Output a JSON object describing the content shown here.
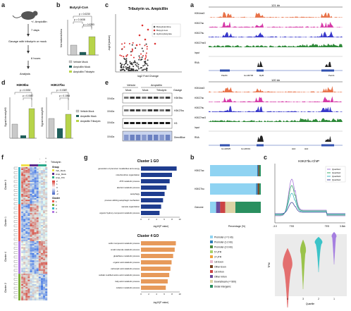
{
  "labels": {
    "a": "a",
    "b": "b",
    "c": "c",
    "d": "d",
    "e": "e",
    "f": "f",
    "g": "g",
    "h": "b",
    "i": "c",
    "a2": "a"
  },
  "panel_a": {
    "steps": [
      "+/- Ampicillin",
      "7 days",
      "Gavage with tributyrin or mock",
      "6 hours",
      "Analysis"
    ]
  },
  "panel_b": {
    "title": "Butyryl-CoA",
    "ylabel": "Normalized Area",
    "pvals": [
      "p = 0.0230",
      "p = 0.1638",
      "p = 0.0283"
    ],
    "legend": [
      "Vehicle Mock",
      "Ampicillin Mock",
      "Ampicillin Tributyrin"
    ],
    "colors": [
      "#c9c9c9",
      "#1f5f5b",
      "#b7d44a"
    ]
  },
  "panel_c": {
    "title": "Tributyrin vs. Ampicillin",
    "xlabel": "log2 Fold Change",
    "ylabel": "-log10(pvalue)",
    "legend": [
      "Butyrylcarnitine",
      "Butyryl-CoA",
      "Hydroxybutyrate"
    ]
  },
  "panel_d": {
    "titles": [
      "H3K9bu",
      "H3K27bu"
    ],
    "ylabel": "Signal Intensity/H3",
    "left_pvals": [
      "p = 0.0033",
      "p = 0.0087"
    ],
    "right_pvals": [
      "p = 0.0387",
      "p = 0.1064"
    ],
    "legend": [
      "Vehicle Mock",
      "Ampicillin Mock",
      "Ampicillin Tributyrin"
    ]
  },
  "panel_e": {
    "headers": [
      "Vehicle",
      "Ampicillin",
      "Mock",
      "Mock",
      "Tributyrin",
      "Gavage"
    ],
    "kda": [
      "15 kDa",
      "15 kDa",
      "15 kDa",
      "15 kDa",
      "15 kDa"
    ],
    "bands": [
      "H3K9bu",
      "H3K27bu",
      "H3",
      "DirectBlue"
    ]
  },
  "panel_genome1": {
    "scale": "121 kb",
    "tracks": [
      "H3K4me3",
      "H3K27ac",
      "H3K27bu",
      "H3K27me3",
      "Input",
      "RNA"
    ],
    "genes": [
      "Pla2f4",
      "Gm36705",
      "Rpl5",
      "Pacrt1"
    ]
  },
  "panel_genome2": {
    "scale": "120 kb",
    "tracks": [
      "H3K4me3",
      "H3K27ac",
      "H3K27bu",
      "H3K27me3",
      "Input",
      "RNA"
    ],
    "genes": [
      "Gm20825",
      "Gm20691",
      "Hk2",
      "Hk2"
    ]
  },
  "panel_f": {
    "groups": [
      "Group",
      "Veh_Mock",
      "Amp_Mock",
      "Amp_Trib"
    ],
    "header_symbols": [
      "-",
      "+",
      "-",
      "+",
      "Tributyrin"
    ],
    "clusters": [
      "Cluster 3",
      "Cluster 1",
      "Cluster 4",
      "Cluster 2"
    ],
    "scale_ticks": [
      "2",
      "1",
      "0",
      "-1",
      "-2"
    ],
    "cluster_legend_title": "Cluster",
    "cluster_ids": [
      "1",
      "2",
      "3",
      "4"
    ]
  },
  "panel_g": {
    "c1_title": "Cluster 1 GO",
    "c1_terms": [
      "generation of precursor metabolites and energy",
      "mitochondrion organization",
      "ATP metabolic process",
      "alcohol metabolic process",
      "autophagy",
      "process utilizing autophagic mechanism",
      "vacuole organization",
      "organic hydroxy compound metabolic process"
    ],
    "c1_values": [
      9.2,
      8.0,
      7.4,
      6.6,
      6.1,
      5.7,
      5.2,
      4.8
    ],
    "c4_title": "Cluster 4 GO",
    "c4_terms": [
      "sulfur compound metabolic process",
      "small molecule catabolic process",
      "glutathione metabolic process",
      "organic acid catabolic process",
      "carboxylic acid catabolic process",
      "cellular modified amino acid metabolic process",
      "fatty acid metabolic process",
      "cofactor metabolic process"
    ],
    "c4_values": [
      9.0,
      8.7,
      8.3,
      7.9,
      7.6,
      7.3,
      6.9,
      6.4
    ],
    "xlabel": "-log10(P value)",
    "ticks": [
      "0",
      "2",
      "4",
      "6",
      "8",
      "10"
    ]
  },
  "panel_h": {
    "rows": [
      "H3K27ac",
      "H3K27bu",
      "Genome"
    ],
    "xlabel": "Percentage (%)",
    "legend": [
      "Promoter (<=1 kb)",
      "Promoter (1-2 kb)",
      "Promoter (2-3 kb)",
      "5' UTR",
      "3' UTR",
      "1st Exon",
      "Other Exon",
      "1st Intron",
      "Other Intron",
      "Downstream (<=300)",
      "Distal Intergenic"
    ],
    "legend_colors": [
      "#8fd3f2",
      "#2e7fb8",
      "#4a8a3a",
      "#a5d36b",
      "#f0a33a",
      "#e9b7cf",
      "#7a3f1c",
      "#c44",
      "#6a4a9c",
      "#dcd3a5",
      "#2a8f5f"
    ]
  },
  "panel_i": {
    "title": "H3K27bu ChIP",
    "xticks": [
      "-3.0",
      "TSS",
      "TES",
      "3.0kb"
    ],
    "legend": [
      "Quartile1",
      "Quartile2",
      "Quartile3",
      "Quartile4"
    ],
    "colors": [
      "#a678d8",
      "#3aa86a",
      "#38b8c0",
      "#4a4a9a"
    ],
    "violin_ylabel": "TPM",
    "violin_xlabel": "Quartile",
    "violin_xticks": [
      "4",
      "3",
      "2",
      "1"
    ],
    "violin_colors": [
      "#e36f6f",
      "#9ac34a",
      "#3bc3c8",
      "#a57ee0"
    ]
  }
}
